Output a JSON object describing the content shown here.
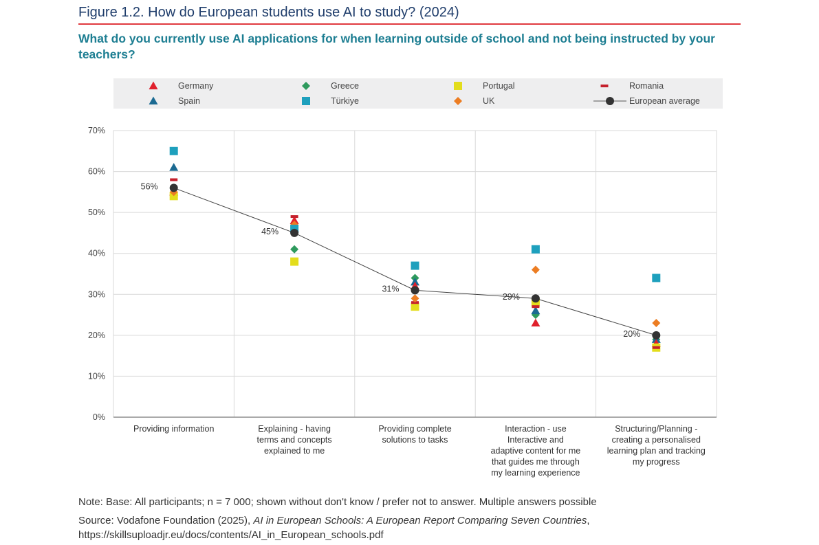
{
  "figure_title": "Figure 1.2. How do European students use AI to study? (2024)",
  "subtitle": "What do you currently use AI applications for when learning outside of school and not being instructed by your teachers?",
  "legend": [
    {
      "name": "Germany",
      "shape": "triangle",
      "color": "#e0202c"
    },
    {
      "name": "Spain",
      "shape": "triangle",
      "color": "#1b6a92"
    },
    {
      "name": "Greece",
      "shape": "diamond",
      "color": "#2e9a5d"
    },
    {
      "name": "Türkiye",
      "shape": "square",
      "color": "#1ea0bd"
    },
    {
      "name": "Portugal",
      "shape": "square",
      "color": "#e3dd1c"
    },
    {
      "name": "UK",
      "shape": "diamond",
      "color": "#ec7d23"
    },
    {
      "name": "Romania",
      "shape": "dash",
      "color": "#c5202c"
    },
    {
      "name": "European average",
      "shape": "circle-line",
      "color": "#333333"
    }
  ],
  "chart_data": {
    "type": "scatter",
    "categories": [
      "Providing information",
      "Explaining - having terms and concepts explained to me",
      "Providing complete solutions to tasks",
      "Interaction - use Interactive and adaptive content for me that guides me through my learning experience",
      "Structuring/Planning - creating a personalised learning plan and tracking my progress"
    ],
    "category_lines": [
      [
        "Providing information"
      ],
      [
        "Explaining - having",
        "terms and concepts",
        "explained to me"
      ],
      [
        "Providing complete",
        "solutions to tasks"
      ],
      [
        "Interaction - use",
        "Interactive and",
        "adaptive content for me",
        "that guides me through",
        "my learning experience"
      ],
      [
        "Structuring/Planning -",
        "creating a personalised",
        "learning plan and tracking",
        "my progress"
      ]
    ],
    "yticks": [
      "0%",
      "10%",
      "20%",
      "30%",
      "40%",
      "50%",
      "60%",
      "70%"
    ],
    "ylim": [
      0,
      70
    ],
    "grid": true,
    "series": [
      {
        "name": "Germany",
        "values": [
          55,
          48,
          32,
          23,
          18
        ]
      },
      {
        "name": "Spain",
        "values": [
          61,
          46,
          33,
          26,
          19
        ]
      },
      {
        "name": "Greece",
        "values": [
          56,
          41,
          34,
          25,
          19
        ]
      },
      {
        "name": "Türkiye",
        "values": [
          65,
          46,
          37,
          41,
          34
        ]
      },
      {
        "name": "Portugal",
        "values": [
          54,
          38,
          27,
          28,
          17
        ]
      },
      {
        "name": "UK",
        "values": [
          55,
          47,
          29,
          36,
          23
        ]
      },
      {
        "name": "Romania",
        "values": [
          58,
          49,
          28,
          27,
          17
        ]
      },
      {
        "name": "European average",
        "values": [
          56,
          45,
          31,
          29,
          20
        ]
      }
    ],
    "average_labels": [
      "56%",
      "45%",
      "31%",
      "29%",
      "20%"
    ]
  },
  "note": "Note: Base: All participants; n = 7 000; shown without don't know / prefer not to answer. Multiple answers possible",
  "source_prefix": "Source: Vodafone Foundation (2025), ",
  "source_title": "AI in European Schools: A European Report Comparing Seven Countries",
  "source_suffix": ", https://skillsuploadjr.eu/docs/contents/AI_in_European_schools.pdf"
}
